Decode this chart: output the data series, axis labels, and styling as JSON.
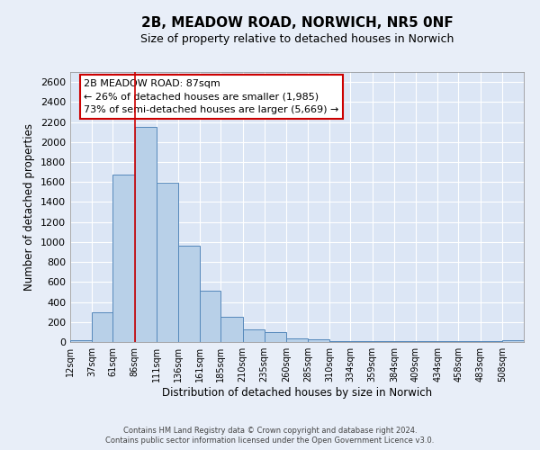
{
  "title": "2B, MEADOW ROAD, NORWICH, NR5 0NF",
  "subtitle": "Size of property relative to detached houses in Norwich",
  "xlabel": "Distribution of detached houses by size in Norwich",
  "ylabel": "Number of detached properties",
  "bar_labels": [
    "12sqm",
    "37sqm",
    "61sqm",
    "86sqm",
    "111sqm",
    "136sqm",
    "161sqm",
    "185sqm",
    "210sqm",
    "235sqm",
    "260sqm",
    "285sqm",
    "310sqm",
    "334sqm",
    "359sqm",
    "384sqm",
    "409sqm",
    "434sqm",
    "458sqm",
    "483sqm",
    "508sqm"
  ],
  "bar_values": [
    20,
    295,
    1670,
    2150,
    1590,
    960,
    510,
    255,
    125,
    100,
    35,
    30,
    5,
    5,
    5,
    5,
    5,
    5,
    5,
    5,
    20
  ],
  "bar_color": "#b8d0e8",
  "bar_edge_color": "#5588bb",
  "bin_starts": [
    12,
    37,
    61,
    86,
    111,
    136,
    161,
    185,
    210,
    235,
    260,
    285,
    310,
    334,
    359,
    384,
    409,
    434,
    458,
    483,
    508
  ],
  "property_line_x": 86,
  "annotation_title": "2B MEADOW ROAD: 87sqm",
  "annotation_line1": "← 26% of detached houses are smaller (1,985)",
  "annotation_line2": "73% of semi-detached houses are larger (5,669) →",
  "annotation_box_facecolor": "#ffffff",
  "annotation_box_edgecolor": "#cc0000",
  "red_line_color": "#cc0000",
  "ylim": [
    0,
    2700
  ],
  "yticks": [
    0,
    200,
    400,
    600,
    800,
    1000,
    1200,
    1400,
    1600,
    1800,
    2000,
    2200,
    2400,
    2600
  ],
  "footer1": "Contains HM Land Registry data © Crown copyright and database right 2024.",
  "footer2": "Contains public sector information licensed under the Open Government Licence v3.0.",
  "fig_bg_color": "#e8eef8",
  "plot_bg_color": "#dce6f5",
  "grid_color": "#ffffff"
}
